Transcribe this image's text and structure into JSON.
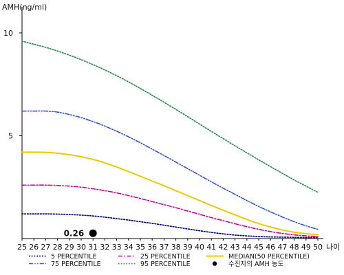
{
  "chart_data": {
    "type": "line",
    "ylabel": "AMH(ng/ml)",
    "xlabel": "나이",
    "x": [
      25,
      26,
      27,
      28,
      29,
      30,
      31,
      32,
      33,
      34,
      35,
      36,
      37,
      38,
      39,
      40,
      41,
      42,
      43,
      44,
      45,
      46,
      47,
      48,
      49,
      50
    ],
    "xlim": [
      25,
      50
    ],
    "ylim": [
      0,
      11
    ],
    "yticks": [
      5,
      10
    ],
    "grid": false,
    "legend_position": "bottom",
    "series": [
      {
        "name": "5 PERCENTILE",
        "color": "#000080",
        "style": "dotted",
        "values": [
          1.2,
          1.2,
          1.2,
          1.19,
          1.17,
          1.14,
          1.1,
          1.04,
          0.97,
          0.9,
          0.82,
          0.74,
          0.65,
          0.56,
          0.47,
          0.38,
          0.3,
          0.23,
          0.17,
          0.13,
          0.1,
          0.08,
          0.07,
          0.06,
          0.05,
          0.05
        ]
      },
      {
        "name": "25 PERCENTILE",
        "color": "#cc0099",
        "style": "dashdot",
        "values": [
          2.6,
          2.6,
          2.6,
          2.58,
          2.55,
          2.5,
          2.42,
          2.33,
          2.22,
          2.09,
          1.95,
          1.8,
          1.65,
          1.5,
          1.34,
          1.18,
          1.02,
          0.87,
          0.72,
          0.58,
          0.45,
          0.34,
          0.25,
          0.18,
          0.13,
          0.1
        ]
      },
      {
        "name": "MEDIAN(50 PERCENTILE)",
        "color": "#f0c800",
        "style": "solid",
        "values": [
          4.2,
          4.2,
          4.19,
          4.15,
          4.08,
          3.98,
          3.85,
          3.68,
          3.48,
          3.26,
          3.03,
          2.8,
          2.57,
          2.33,
          2.09,
          1.85,
          1.61,
          1.38,
          1.15,
          0.93,
          0.73,
          0.56,
          0.42,
          0.31,
          0.24,
          0.2
        ]
      },
      {
        "name": "75 PERCENTILE",
        "color": "#3355cc",
        "style": "dashdotdot",
        "values": [
          6.2,
          6.2,
          6.2,
          6.15,
          6.03,
          5.88,
          5.69,
          5.47,
          5.22,
          4.95,
          4.66,
          4.35,
          4.04,
          3.72,
          3.4,
          3.08,
          2.76,
          2.45,
          2.15,
          1.85,
          1.56,
          1.3,
          1.05,
          0.82,
          0.62,
          0.45
        ]
      },
      {
        "name": "95 PERCENTILE",
        "color": "#2e8b57",
        "style": "dotted",
        "values": [
          9.6,
          9.45,
          9.3,
          9.12,
          8.92,
          8.7,
          8.46,
          8.2,
          7.92,
          7.62,
          7.3,
          6.97,
          6.63,
          6.28,
          5.93,
          5.57,
          5.21,
          4.86,
          4.51,
          4.17,
          3.83,
          3.5,
          3.17,
          2.85,
          2.55,
          2.25
        ]
      }
    ],
    "legend_order": [
      "5 PERCENTILE",
      "25 PERCENTILE",
      "MEDIAN(50 PERCENTILE)",
      "75 PERCENTILE",
      "95 PERCENTILE",
      "수진자의 AMH 농도"
    ],
    "patient_point": {
      "name": "수진자의 AMH 농도",
      "x": 31,
      "y": 0.26,
      "label": "0.26",
      "color": "#000000"
    }
  }
}
